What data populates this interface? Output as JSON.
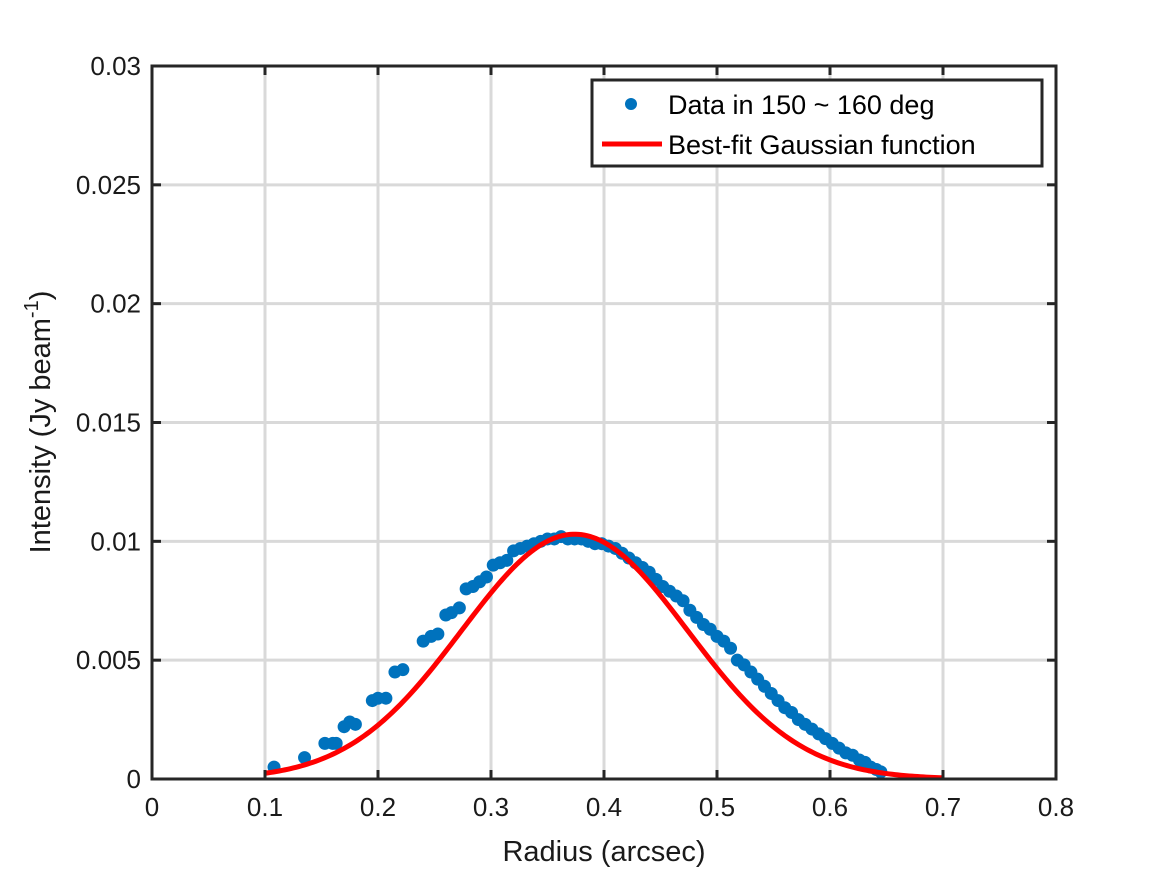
{
  "chart_data": {
    "type": "scatter",
    "xlabel": "Radius (arcsec)",
    "ylabel": "Intensity (Jy beam",
    "ylabel_superscript": "-1",
    "ylabel_close": ")",
    "xlim": [
      0,
      0.8
    ],
    "ylim": [
      0,
      0.03
    ],
    "x_ticks": [
      0,
      0.1,
      0.2,
      0.3,
      0.4,
      0.5,
      0.6,
      0.7,
      0.8
    ],
    "x_tick_labels": [
      "0",
      "0.1",
      "0.2",
      "0.3",
      "0.4",
      "0.5",
      "0.6",
      "0.7",
      "0.8"
    ],
    "y_ticks": [
      0,
      0.005,
      0.01,
      0.015,
      0.02,
      0.025,
      0.03
    ],
    "y_tick_labels": [
      "0",
      "0.005",
      "0.01",
      "0.015",
      "0.02",
      "0.025",
      "0.03"
    ],
    "grid": true,
    "legend_position": "top-right",
    "series": [
      {
        "name": "Data in 150 ~ 160 deg",
        "kind": "scatter",
        "color": "#0072BD",
        "x": [
          0.108,
          0.135,
          0.153,
          0.16,
          0.163,
          0.17,
          0.175,
          0.18,
          0.195,
          0.2,
          0.207,
          0.215,
          0.222,
          0.24,
          0.247,
          0.253,
          0.26,
          0.265,
          0.272,
          0.278,
          0.284,
          0.29,
          0.296,
          0.302,
          0.308,
          0.314,
          0.32,
          0.326,
          0.332,
          0.338,
          0.344,
          0.35,
          0.356,
          0.362,
          0.368,
          0.374,
          0.38,
          0.386,
          0.392,
          0.398,
          0.404,
          0.41,
          0.416,
          0.422,
          0.428,
          0.434,
          0.44,
          0.446,
          0.452,
          0.458,
          0.464,
          0.47,
          0.476,
          0.482,
          0.488,
          0.494,
          0.5,
          0.506,
          0.512,
          0.518,
          0.524,
          0.53,
          0.536,
          0.542,
          0.548,
          0.554,
          0.56,
          0.566,
          0.572,
          0.578,
          0.584,
          0.59,
          0.596,
          0.602,
          0.608,
          0.614,
          0.62,
          0.626,
          0.631,
          0.636,
          0.641,
          0.645
        ],
        "y": [
          0.0005,
          0.0009,
          0.0015,
          0.0015,
          0.0015,
          0.0022,
          0.0024,
          0.0023,
          0.0033,
          0.0034,
          0.0034,
          0.0045,
          0.0046,
          0.0058,
          0.006,
          0.0061,
          0.0069,
          0.007,
          0.0072,
          0.008,
          0.0081,
          0.0083,
          0.0085,
          0.009,
          0.0091,
          0.0092,
          0.0096,
          0.0097,
          0.0098,
          0.0099,
          0.01,
          0.0101,
          0.0101,
          0.0102,
          0.0101,
          0.0101,
          0.0101,
          0.01,
          0.0099,
          0.0099,
          0.0098,
          0.0097,
          0.0095,
          0.0093,
          0.0091,
          0.0089,
          0.0087,
          0.0084,
          0.0081,
          0.0079,
          0.0077,
          0.0075,
          0.0071,
          0.0068,
          0.0065,
          0.0063,
          0.006,
          0.0058,
          0.0055,
          0.005,
          0.0048,
          0.0045,
          0.0042,
          0.0039,
          0.0036,
          0.0033,
          0.003,
          0.0028,
          0.0025,
          0.0023,
          0.0021,
          0.0019,
          0.0017,
          0.0015,
          0.0013,
          0.0011,
          0.001,
          0.0008,
          0.0007,
          0.0005,
          0.0004,
          0.0003
        ]
      },
      {
        "name": "Best-fit Gaussian function",
        "kind": "line",
        "color": "#FF0000",
        "model": "gaussian",
        "amplitude": 0.0103,
        "center": 0.374,
        "sigma": 0.1,
        "x_range": [
          0.1,
          0.7
        ]
      }
    ]
  }
}
